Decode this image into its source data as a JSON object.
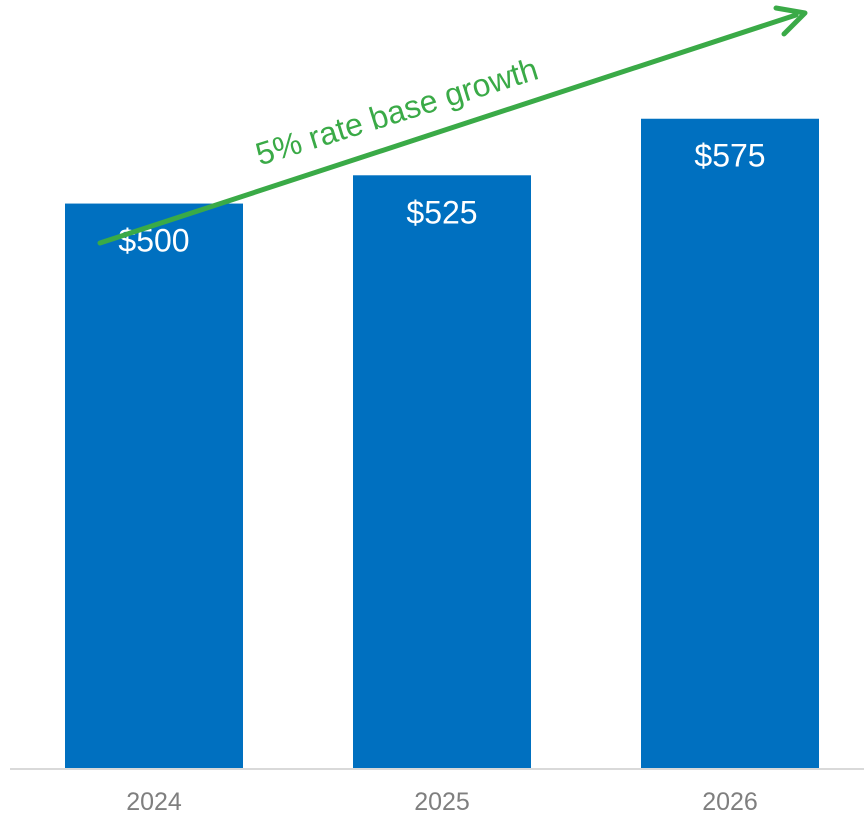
{
  "chart_data": {
    "type": "bar",
    "categories": [
      "2024",
      "2025",
      "2026"
    ],
    "values": [
      500,
      525,
      575
    ],
    "value_labels": [
      "$500",
      "$525",
      "$575"
    ],
    "title": "",
    "xlabel": "",
    "ylabel": "",
    "ylim": [
      0,
      680
    ],
    "grid": false,
    "legend": "none",
    "bar_color": "#0070c0",
    "annotation": {
      "text": "5% rate base growth",
      "color": "#3aaa47",
      "type": "arrow"
    }
  }
}
